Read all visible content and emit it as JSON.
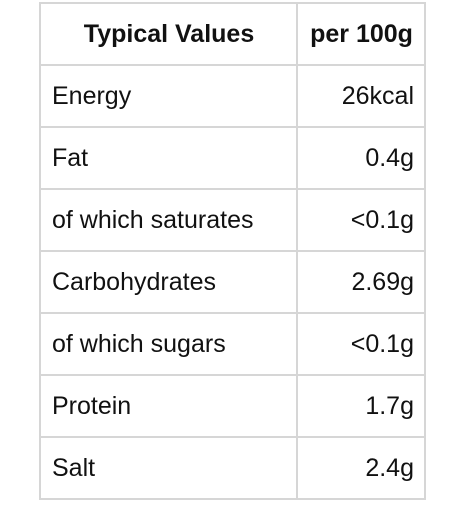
{
  "header": {
    "typical_values": "Typical Values",
    "per_100g": "per 100g"
  },
  "rows": [
    {
      "nutrient": "Energy",
      "value": "26kcal"
    },
    {
      "nutrient": "Fat",
      "value": "0.4g"
    },
    {
      "nutrient": "of which saturates",
      "value": "<0.1g"
    },
    {
      "nutrient": "Carbohydrates",
      "value": "2.69g"
    },
    {
      "nutrient": "of which sugars",
      "value": "<0.1g"
    },
    {
      "nutrient": "Protein",
      "value": "1.7g"
    },
    {
      "nutrient": "Salt",
      "value": "2.4g"
    }
  ],
  "colors": {
    "border": "#d6d6d6",
    "text": "#111111",
    "background": "#ffffff"
  }
}
